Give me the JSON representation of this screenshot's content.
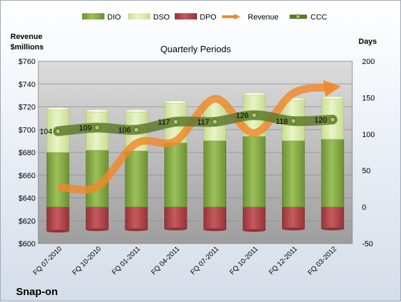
{
  "chart_data": {
    "type": "bar",
    "title": "Quarterly Periods",
    "company": "Snap-on",
    "left_axis_label": [
      "Revenue",
      "$millions"
    ],
    "right_axis_label": "Days",
    "categories": [
      "FQ 07-2010",
      "FQ 10-2010",
      "FQ 01-2011",
      "FQ 04-2011",
      "FQ 07-2011",
      "FQ 10-2011",
      "FQ 12-2011",
      "FQ 03-2012"
    ],
    "left_axis": {
      "min": 600,
      "max": 760,
      "step": 20,
      "tick_labels": [
        "$600",
        "$620",
        "$640",
        "$660",
        "$680",
        "$700",
        "$720",
        "$740",
        "$760"
      ]
    },
    "right_axis": {
      "min": -50,
      "max": 200,
      "step": 50,
      "tick_labels": [
        "-50",
        "0",
        "50",
        "100",
        "150",
        "200"
      ]
    },
    "legend": {
      "position": "top",
      "entries": [
        "DIO",
        "DSO",
        "DPO",
        "Revenue",
        "CCC"
      ]
    },
    "series": [
      {
        "name": "DIO",
        "axis": "right",
        "values": [
          75,
          78,
          77,
          88,
          91,
          97,
          91,
          93
        ],
        "color": "#7fa341"
      },
      {
        "name": "DSO",
        "axis": "right",
        "values": [
          60,
          54,
          55,
          56,
          57,
          58,
          57,
          57
        ],
        "color": "#d6e8a5"
      },
      {
        "name": "DPO",
        "axis": "right",
        "values": [
          -33,
          -31,
          -31,
          -30,
          -31,
          -32,
          -30,
          -30
        ],
        "color": "#b24a4e"
      },
      {
        "name": "Revenue",
        "axis": "left",
        "values": [
          650,
          650,
          688,
          690,
          727,
          697,
          732,
          737
        ],
        "color": "#f0882a"
      },
      {
        "name": "CCC",
        "axis": "right",
        "values": [
          104,
          109,
          106,
          117,
          117,
          126,
          118,
          120
        ],
        "color": "#5e7a2a"
      }
    ],
    "data_labels": [
      "104",
      "109",
      "106",
      "117",
      "117",
      "126",
      "118",
      "120"
    ],
    "grid": true
  }
}
